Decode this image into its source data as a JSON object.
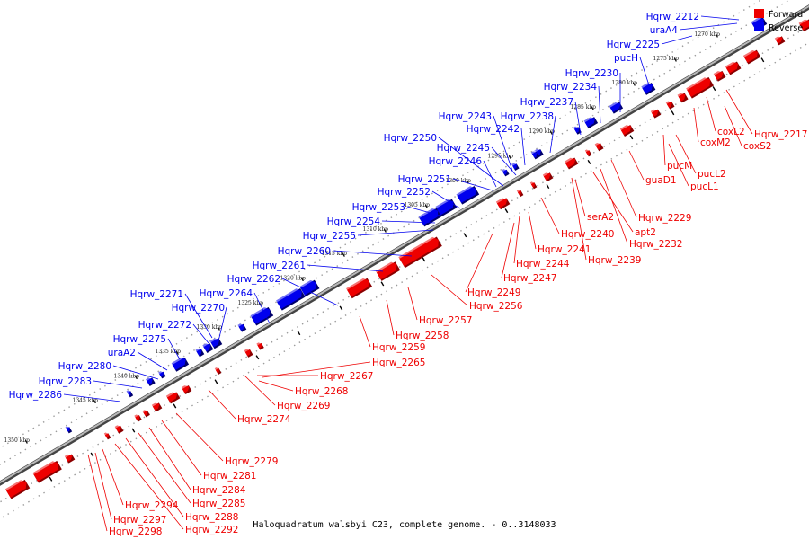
{
  "caption": "Haloquadratum walsbyi C23, complete genome. - 0..3148033",
  "legend": [
    {
      "label": "Forward",
      "color": "#ee0000"
    },
    {
      "label": "Reverse",
      "color": "#0000ee"
    }
  ],
  "ticks": [
    "1270 kbp",
    "1275 kbp",
    "1280 kbp",
    "1285 kbp",
    "1290 kbp",
    "1295 kbp",
    "1300 kbp",
    "1305 kbp",
    "1310 kbp",
    "1315 kbp",
    "1320 kbp",
    "1325 kbp",
    "1330 kbp",
    "1335 kbp",
    "1340 kbp",
    "1345 kbp",
    "1350 kbp"
  ],
  "reverse_genes": [
    "Hqrw_2212",
    "uraA4",
    "Hqrw_2225",
    "pucH",
    "Hqrw_2230",
    "Hqrw_2234",
    "Hqrw_2237",
    "Hqrw_2238",
    "Hqrw_2243",
    "Hqrw_2242",
    "Hqrw_2250",
    "Hqrw_2245",
    "Hqrw_2246",
    "Hqrw_2251",
    "Hqrw_2252",
    "Hqrw_2253",
    "Hqrw_2254",
    "Hqrw_2255",
    "Hqrw_2260",
    "Hqrw_2261",
    "Hqrw_2262",
    "Hqrw_2264",
    "Hqrw_2271",
    "Hqrw_2270",
    "Hqrw_2272",
    "Hqrw_2275",
    "uraA2",
    "Hqrw_2280",
    "Hqrw_2283",
    "Hqrw_2286"
  ],
  "forward_genes": [
    "Hqrw_2217",
    "coxL2",
    "coxM2",
    "coxS2",
    "pucM",
    "pucL2",
    "pucL1",
    "guaD1",
    "Hqrw_2229",
    "serA2",
    "apt2",
    "Hqrw_2232",
    "Hqrw_2240",
    "Hqrw_2241",
    "Hqrw_2239",
    "Hqrw_2244",
    "Hqrw_2247",
    "Hqrw_2249",
    "Hqrw_2256",
    "Hqrw_2257",
    "Hqrw_2258",
    "Hqrw_2259",
    "Hqrw_2265",
    "Hqrw_2267",
    "Hqrw_2268",
    "Hqrw_2269",
    "Hqrw_2274",
    "Hqrw_2279",
    "Hqrw_2281",
    "Hqrw_2284",
    "Hqrw_2285",
    "Hqrw_2288",
    "Hqrw_2292",
    "Hqrw_2294",
    "Hqrw_2297",
    "Hqrw_2298"
  ]
}
